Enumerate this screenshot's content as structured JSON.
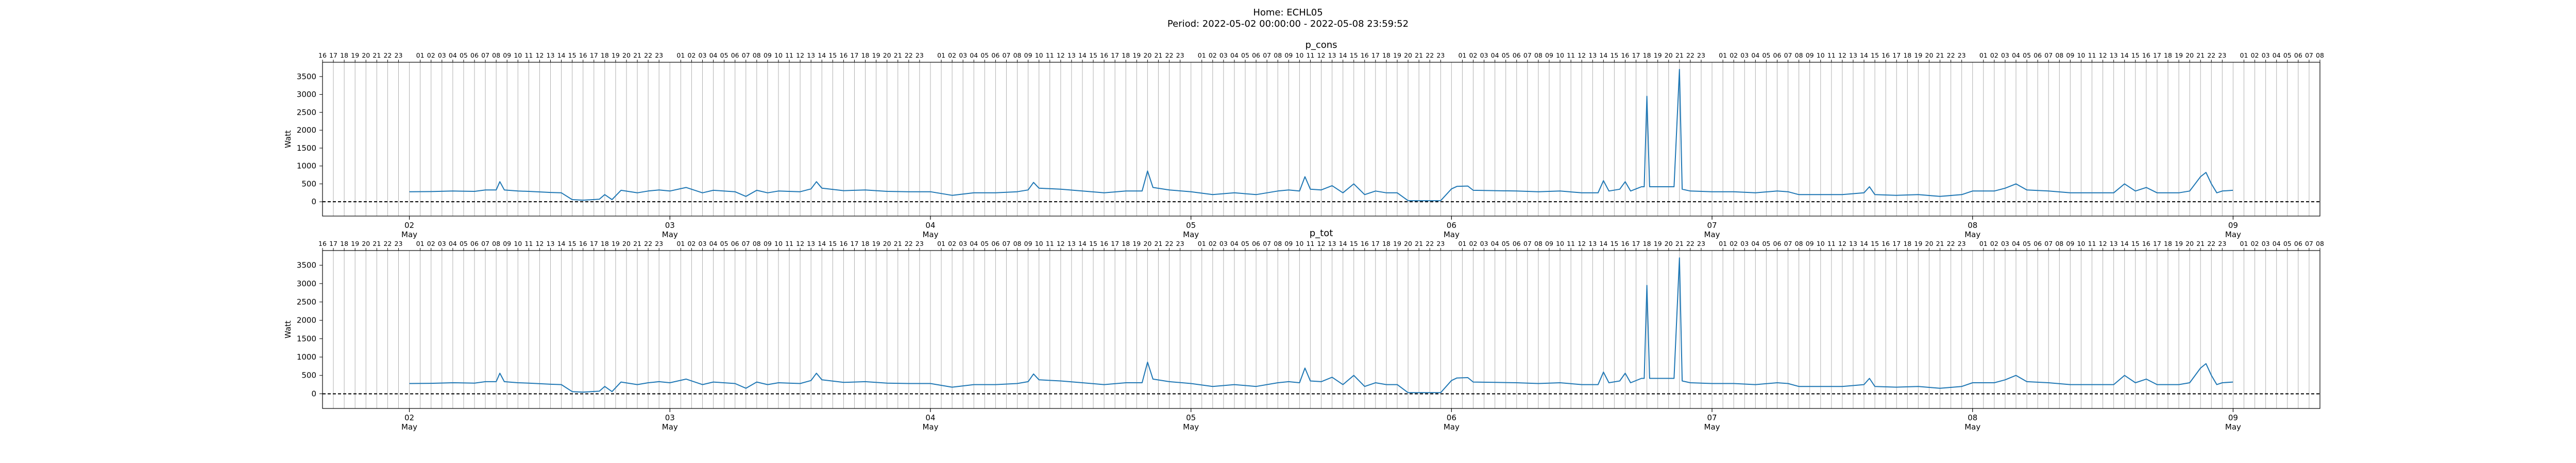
{
  "figure": {
    "title_line1": "Home: ECHL05",
    "title_line2": "Period: 2022-05-02 00:00:00 - 2022-05-08 23:59:52"
  },
  "chart_data": [
    {
      "type": "line",
      "title": "p_cons",
      "ylabel": "Watt",
      "xlabel": "",
      "xlim": [
        "2022-05-01 16:00",
        "2022-05-09 08:00"
      ],
      "ylim": [
        -400,
        3900
      ],
      "yticks": [
        0,
        500,
        1000,
        1500,
        2000,
        2500,
        3000,
        3500
      ],
      "grid_x": "hourly",
      "reference_line_y": 0,
      "series_color": "#1f77b4",
      "major_tick_labels": [
        {
          "day": "02",
          "month": "May"
        },
        {
          "day": "03",
          "month": "May"
        },
        {
          "day": "04",
          "month": "May"
        },
        {
          "day": "05",
          "month": "May"
        },
        {
          "day": "06",
          "month": "May"
        },
        {
          "day": "07",
          "month": "May"
        },
        {
          "day": "08",
          "month": "May"
        },
        {
          "day": "09",
          "month": "May"
        }
      ],
      "points": [
        [
          "05-02 00:00",
          280
        ],
        [
          "05-02 02:00",
          285
        ],
        [
          "05-02 04:00",
          300
        ],
        [
          "05-02 06:00",
          290
        ],
        [
          "05-02 07:00",
          330
        ],
        [
          "05-02 08:00",
          330
        ],
        [
          "05-02 08:20",
          560
        ],
        [
          "05-02 08:45",
          330
        ],
        [
          "05-02 10:00",
          300
        ],
        [
          "05-02 11:00",
          290
        ],
        [
          "05-02 13:00",
          260
        ],
        [
          "05-02 14:00",
          250
        ],
        [
          "05-02 15:00",
          60
        ],
        [
          "05-02 16:00",
          45
        ],
        [
          "05-02 17:30",
          70
        ],
        [
          "05-02 18:00",
          200
        ],
        [
          "05-02 18:40",
          60
        ],
        [
          "05-02 19:30",
          320
        ],
        [
          "05-02 21:00",
          250
        ],
        [
          "05-02 22:00",
          300
        ],
        [
          "05-02 23:00",
          330
        ],
        [
          "05-03 00:00",
          300
        ],
        [
          "05-03 01:30",
          400
        ],
        [
          "05-03 03:00",
          250
        ],
        [
          "05-03 04:00",
          320
        ],
        [
          "05-03 06:00",
          280
        ],
        [
          "05-03 07:00",
          150
        ],
        [
          "05-03 08:00",
          320
        ],
        [
          "05-03 09:00",
          250
        ],
        [
          "05-03 10:00",
          300
        ],
        [
          "05-03 12:00",
          280
        ],
        [
          "05-03 13:00",
          360
        ],
        [
          "05-03 13:30",
          560
        ],
        [
          "05-03 14:00",
          380
        ],
        [
          "05-03 16:00",
          310
        ],
        [
          "05-03 18:00",
          330
        ],
        [
          "05-03 20:00",
          290
        ],
        [
          "05-03 22:00",
          280
        ],
        [
          "05-04 00:00",
          280
        ],
        [
          "05-04 02:00",
          180
        ],
        [
          "05-04 04:00",
          250
        ],
        [
          "05-04 06:00",
          250
        ],
        [
          "05-04 08:00",
          280
        ],
        [
          "05-04 09:00",
          330
        ],
        [
          "05-04 09:30",
          540
        ],
        [
          "05-04 10:00",
          380
        ],
        [
          "05-04 12:00",
          350
        ],
        [
          "05-04 14:00",
          300
        ],
        [
          "05-04 16:00",
          250
        ],
        [
          "05-04 18:00",
          300
        ],
        [
          "05-04 19:30",
          300
        ],
        [
          "05-04 20:00",
          860
        ],
        [
          "05-04 20:30",
          400
        ],
        [
          "05-04 22:00",
          330
        ],
        [
          "05-05 00:00",
          280
        ],
        [
          "05-05 02:00",
          200
        ],
        [
          "05-05 04:00",
          250
        ],
        [
          "05-05 06:00",
          200
        ],
        [
          "05-05 08:00",
          300
        ],
        [
          "05-05 09:00",
          330
        ],
        [
          "05-05 10:00",
          300
        ],
        [
          "05-05 10:30",
          700
        ],
        [
          "05-05 11:00",
          350
        ],
        [
          "05-05 12:00",
          330
        ],
        [
          "05-05 13:00",
          450
        ],
        [
          "05-05 14:00",
          250
        ],
        [
          "05-05 15:00",
          500
        ],
        [
          "05-05 16:00",
          200
        ],
        [
          "05-05 17:00",
          300
        ],
        [
          "05-05 18:00",
          250
        ],
        [
          "05-05 19:00",
          250
        ],
        [
          "05-05 20:00",
          30
        ],
        [
          "05-05 21:00",
          30
        ],
        [
          "05-05 22:00",
          30
        ],
        [
          "05-05 23:00",
          30
        ],
        [
          "05-06 00:00",
          360
        ],
        [
          "05-06 00:30",
          430
        ],
        [
          "05-06 01:30",
          440
        ],
        [
          "05-06 02:00",
          320
        ],
        [
          "05-06 04:00",
          310
        ],
        [
          "05-06 06:00",
          300
        ],
        [
          "05-06 08:00",
          280
        ],
        [
          "05-06 10:00",
          300
        ],
        [
          "05-06 12:00",
          250
        ],
        [
          "05-06 13:30",
          250
        ],
        [
          "05-06 14:00",
          590
        ],
        [
          "05-06 14:30",
          300
        ],
        [
          "05-06 15:30",
          350
        ],
        [
          "05-06 16:00",
          560
        ],
        [
          "05-06 16:30",
          300
        ],
        [
          "05-06 17:30",
          420
        ],
        [
          "05-06 17:45",
          420
        ],
        [
          "05-06 18:00",
          2950
        ],
        [
          "05-06 18:15",
          420
        ],
        [
          "05-06 20:30",
          420
        ],
        [
          "05-06 21:00",
          3700
        ],
        [
          "05-06 21:15",
          350
        ],
        [
          "05-06 22:00",
          300
        ],
        [
          "05-07 00:00",
          280
        ],
        [
          "05-07 02:00",
          280
        ],
        [
          "05-07 04:00",
          250
        ],
        [
          "05-07 06:00",
          300
        ],
        [
          "05-07 07:00",
          280
        ],
        [
          "05-07 08:00",
          200
        ],
        [
          "05-07 10:00",
          200
        ],
        [
          "05-07 12:00",
          200
        ],
        [
          "05-07 14:00",
          250
        ],
        [
          "05-07 14:30",
          420
        ],
        [
          "05-07 15:00",
          200
        ],
        [
          "05-07 17:00",
          180
        ],
        [
          "05-07 19:00",
          200
        ],
        [
          "05-07 21:00",
          150
        ],
        [
          "05-07 23:00",
          200
        ],
        [
          "05-08 00:00",
          300
        ],
        [
          "05-08 02:00",
          300
        ],
        [
          "05-08 03:00",
          380
        ],
        [
          "05-08 04:00",
          500
        ],
        [
          "05-08 05:00",
          330
        ],
        [
          "05-08 07:00",
          300
        ],
        [
          "05-08 09:00",
          250
        ],
        [
          "05-08 11:00",
          250
        ],
        [
          "05-08 13:00",
          250
        ],
        [
          "05-08 14:00",
          500
        ],
        [
          "05-08 15:00",
          300
        ],
        [
          "05-08 16:00",
          400
        ],
        [
          "05-08 17:00",
          250
        ],
        [
          "05-08 19:00",
          250
        ],
        [
          "05-08 20:00",
          300
        ],
        [
          "05-08 21:00",
          700
        ],
        [
          "05-08 21:30",
          820
        ],
        [
          "05-08 22:00",
          500
        ],
        [
          "05-08 22:30",
          250
        ],
        [
          "05-08 23:00",
          300
        ],
        [
          "05-08 23:59",
          320
        ]
      ]
    },
    {
      "type": "line",
      "title": "p_tot",
      "ylabel": "Watt",
      "xlabel": "",
      "xlim": [
        "2022-05-01 16:00",
        "2022-05-09 08:00"
      ],
      "ylim": [
        -400,
        3900
      ],
      "yticks": [
        0,
        500,
        1000,
        1500,
        2000,
        2500,
        3000,
        3500
      ],
      "grid_x": "hourly",
      "reference_line_y": 0,
      "series_color": "#1f77b4",
      "major_tick_labels": [
        {
          "day": "02",
          "month": "May"
        },
        {
          "day": "03",
          "month": "May"
        },
        {
          "day": "04",
          "month": "May"
        },
        {
          "day": "05",
          "month": "May"
        },
        {
          "day": "06",
          "month": "May"
        },
        {
          "day": "07",
          "month": "May"
        },
        {
          "day": "08",
          "month": "May"
        },
        {
          "day": "09",
          "month": "May"
        }
      ],
      "points": [
        [
          "05-02 00:00",
          280
        ],
        [
          "05-02 02:00",
          285
        ],
        [
          "05-02 04:00",
          300
        ],
        [
          "05-02 06:00",
          290
        ],
        [
          "05-02 07:00",
          330
        ],
        [
          "05-02 08:00",
          330
        ],
        [
          "05-02 08:20",
          560
        ],
        [
          "05-02 08:45",
          330
        ],
        [
          "05-02 10:00",
          300
        ],
        [
          "05-02 11:00",
          290
        ],
        [
          "05-02 13:00",
          260
        ],
        [
          "05-02 14:00",
          250
        ],
        [
          "05-02 15:00",
          60
        ],
        [
          "05-02 16:00",
          45
        ],
        [
          "05-02 17:30",
          70
        ],
        [
          "05-02 18:00",
          200
        ],
        [
          "05-02 18:40",
          60
        ],
        [
          "05-02 19:30",
          320
        ],
        [
          "05-02 21:00",
          250
        ],
        [
          "05-02 22:00",
          300
        ],
        [
          "05-02 23:00",
          330
        ],
        [
          "05-03 00:00",
          300
        ],
        [
          "05-03 01:30",
          400
        ],
        [
          "05-03 03:00",
          250
        ],
        [
          "05-03 04:00",
          320
        ],
        [
          "05-03 06:00",
          280
        ],
        [
          "05-03 07:00",
          150
        ],
        [
          "05-03 08:00",
          320
        ],
        [
          "05-03 09:00",
          250
        ],
        [
          "05-03 10:00",
          300
        ],
        [
          "05-03 12:00",
          280
        ],
        [
          "05-03 13:00",
          360
        ],
        [
          "05-03 13:30",
          560
        ],
        [
          "05-03 14:00",
          380
        ],
        [
          "05-03 16:00",
          310
        ],
        [
          "05-03 18:00",
          330
        ],
        [
          "05-03 20:00",
          290
        ],
        [
          "05-03 22:00",
          280
        ],
        [
          "05-04 00:00",
          280
        ],
        [
          "05-04 02:00",
          180
        ],
        [
          "05-04 04:00",
          250
        ],
        [
          "05-04 06:00",
          250
        ],
        [
          "05-04 08:00",
          280
        ],
        [
          "05-04 09:00",
          330
        ],
        [
          "05-04 09:30",
          540
        ],
        [
          "05-04 10:00",
          380
        ],
        [
          "05-04 12:00",
          350
        ],
        [
          "05-04 14:00",
          300
        ],
        [
          "05-04 16:00",
          250
        ],
        [
          "05-04 18:00",
          300
        ],
        [
          "05-04 19:30",
          300
        ],
        [
          "05-04 20:00",
          860
        ],
        [
          "05-04 20:30",
          400
        ],
        [
          "05-04 22:00",
          330
        ],
        [
          "05-05 00:00",
          280
        ],
        [
          "05-05 02:00",
          200
        ],
        [
          "05-05 04:00",
          250
        ],
        [
          "05-05 06:00",
          200
        ],
        [
          "05-05 08:00",
          300
        ],
        [
          "05-05 09:00",
          330
        ],
        [
          "05-05 10:00",
          300
        ],
        [
          "05-05 10:30",
          700
        ],
        [
          "05-05 11:00",
          350
        ],
        [
          "05-05 12:00",
          330
        ],
        [
          "05-05 13:00",
          450
        ],
        [
          "05-05 14:00",
          250
        ],
        [
          "05-05 15:00",
          500
        ],
        [
          "05-05 16:00",
          200
        ],
        [
          "05-05 17:00",
          300
        ],
        [
          "05-05 18:00",
          250
        ],
        [
          "05-05 19:00",
          250
        ],
        [
          "05-05 20:00",
          30
        ],
        [
          "05-05 21:00",
          30
        ],
        [
          "05-05 22:00",
          30
        ],
        [
          "05-05 23:00",
          30
        ],
        [
          "05-06 00:00",
          360
        ],
        [
          "05-06 00:30",
          430
        ],
        [
          "05-06 01:30",
          440
        ],
        [
          "05-06 02:00",
          320
        ],
        [
          "05-06 04:00",
          310
        ],
        [
          "05-06 06:00",
          300
        ],
        [
          "05-06 08:00",
          280
        ],
        [
          "05-06 10:00",
          300
        ],
        [
          "05-06 12:00",
          250
        ],
        [
          "05-06 13:30",
          250
        ],
        [
          "05-06 14:00",
          590
        ],
        [
          "05-06 14:30",
          300
        ],
        [
          "05-06 15:30",
          350
        ],
        [
          "05-06 16:00",
          560
        ],
        [
          "05-06 16:30",
          300
        ],
        [
          "05-06 17:30",
          420
        ],
        [
          "05-06 17:45",
          420
        ],
        [
          "05-06 18:00",
          2950
        ],
        [
          "05-06 18:15",
          420
        ],
        [
          "05-06 20:30",
          420
        ],
        [
          "05-06 21:00",
          3700
        ],
        [
          "05-06 21:15",
          350
        ],
        [
          "05-06 22:00",
          300
        ],
        [
          "05-07 00:00",
          280
        ],
        [
          "05-07 02:00",
          280
        ],
        [
          "05-07 04:00",
          250
        ],
        [
          "05-07 06:00",
          300
        ],
        [
          "05-07 07:00",
          280
        ],
        [
          "05-07 08:00",
          200
        ],
        [
          "05-07 10:00",
          200
        ],
        [
          "05-07 12:00",
          200
        ],
        [
          "05-07 14:00",
          250
        ],
        [
          "05-07 14:30",
          420
        ],
        [
          "05-07 15:00",
          200
        ],
        [
          "05-07 17:00",
          180
        ],
        [
          "05-07 19:00",
          200
        ],
        [
          "05-07 21:00",
          150
        ],
        [
          "05-07 23:00",
          200
        ],
        [
          "05-08 00:00",
          300
        ],
        [
          "05-08 02:00",
          300
        ],
        [
          "05-08 03:00",
          380
        ],
        [
          "05-08 04:00",
          500
        ],
        [
          "05-08 05:00",
          330
        ],
        [
          "05-08 07:00",
          300
        ],
        [
          "05-08 09:00",
          250
        ],
        [
          "05-08 11:00",
          250
        ],
        [
          "05-08 13:00",
          250
        ],
        [
          "05-08 14:00",
          500
        ],
        [
          "05-08 15:00",
          300
        ],
        [
          "05-08 16:00",
          400
        ],
        [
          "05-08 17:00",
          250
        ],
        [
          "05-08 19:00",
          250
        ],
        [
          "05-08 20:00",
          300
        ],
        [
          "05-08 21:00",
          700
        ],
        [
          "05-08 21:30",
          820
        ],
        [
          "05-08 22:00",
          500
        ],
        [
          "05-08 22:30",
          250
        ],
        [
          "05-08 23:00",
          300
        ],
        [
          "05-08 23:59",
          320
        ]
      ]
    }
  ]
}
